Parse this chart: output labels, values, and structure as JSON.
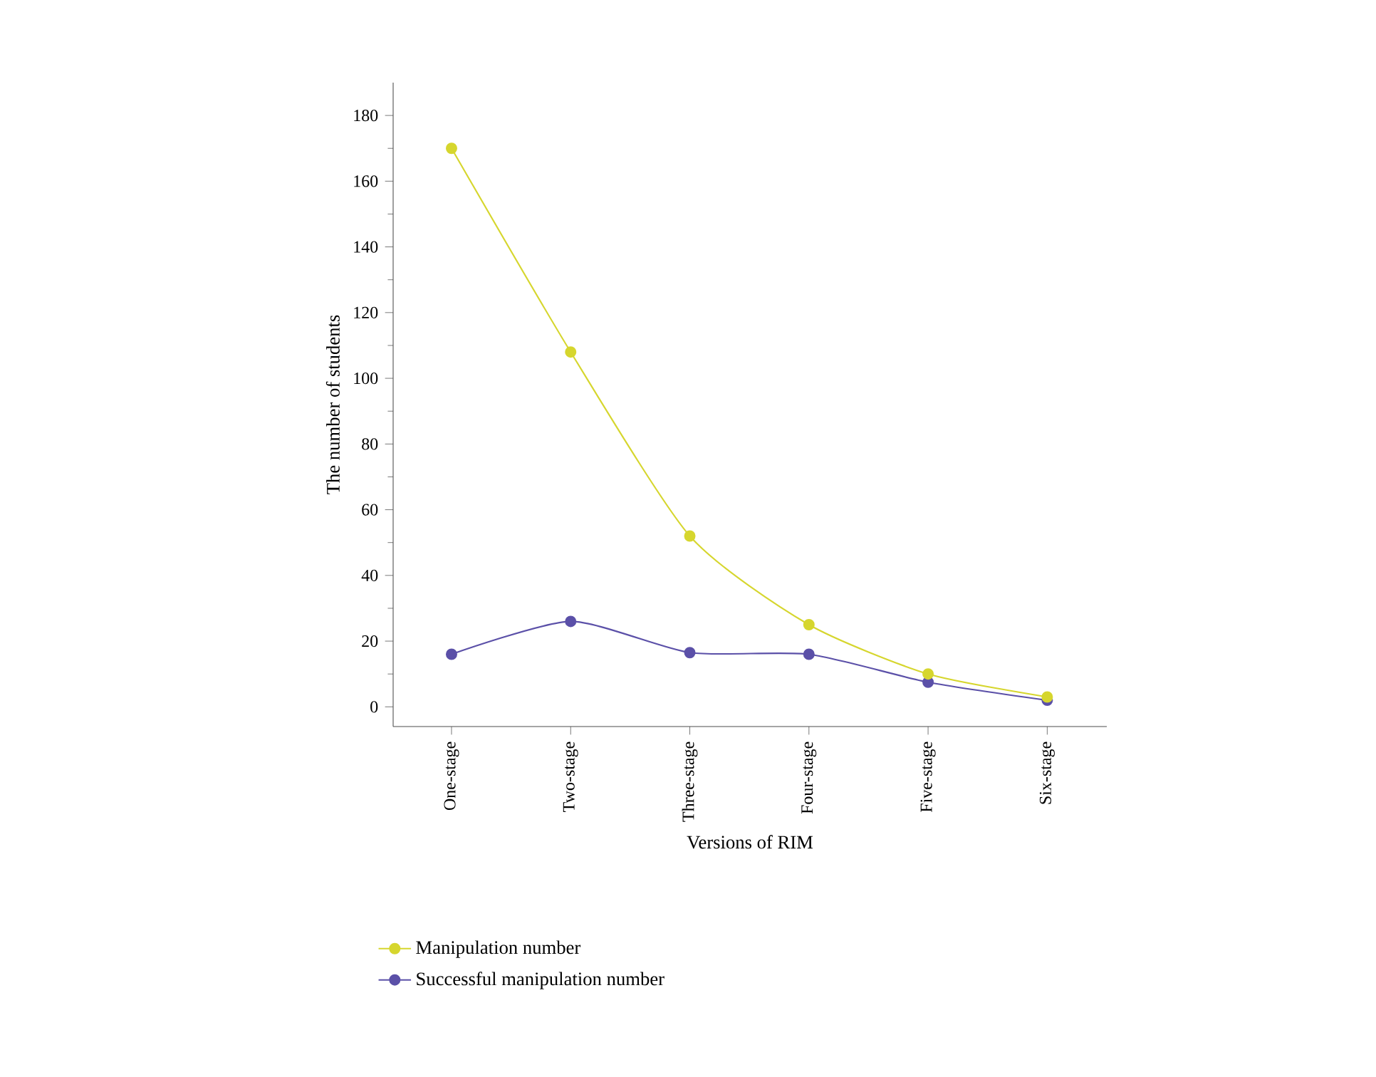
{
  "chart_data": {
    "type": "line",
    "xlabel": "Versions of RIM",
    "ylabel": "The number of students",
    "categories": [
      "One-stage",
      "Two-stage",
      "Three-stage",
      "Four-stage",
      "Five-stage",
      "Six-stage"
    ],
    "series": [
      {
        "name": "Manipulation number",
        "color": "#d6d62e",
        "values": [
          170,
          108,
          52,
          25,
          10,
          3
        ]
      },
      {
        "name": "Successful manipulation number",
        "color": "#5b50a8",
        "values": [
          16,
          26,
          16.5,
          16,
          7.5,
          2
        ]
      }
    ],
    "ylim": [
      -6,
      190
    ],
    "yticks": [
      0,
      20,
      40,
      60,
      80,
      100,
      120,
      140,
      160,
      180
    ],
    "marker": "circle",
    "line_style": "solid",
    "grid": false,
    "legend": "bottom"
  }
}
